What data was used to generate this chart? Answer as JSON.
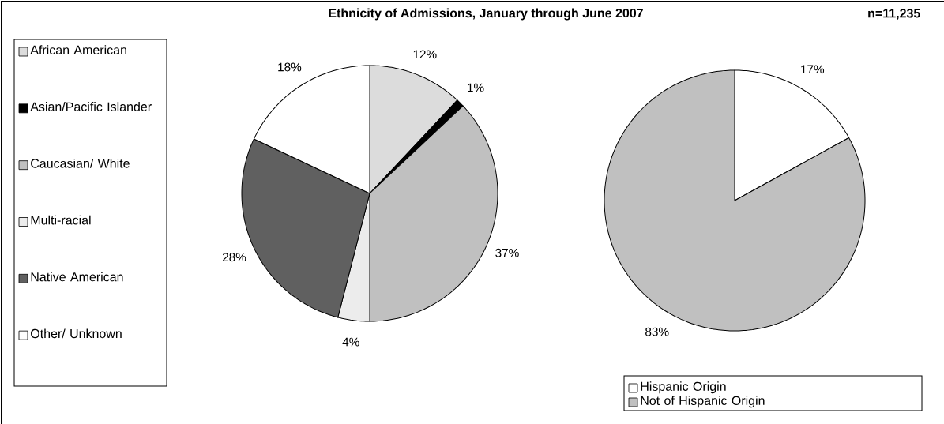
{
  "chart_data": [
    {
      "type": "pie",
      "title": "Ethnicity of Admissions, January through June 2007",
      "annotations": [
        "n=11,235"
      ],
      "categories": [
        "African American",
        "Asian/Pacific Islander",
        "Caucasian/ White",
        "Multi-racial",
        "Native American",
        "Other/ Unknown"
      ],
      "values": [
        12,
        1,
        37,
        4,
        28,
        18
      ],
      "value_labels": [
        "12%",
        "1%",
        "37%",
        "4%",
        "28%",
        "18%"
      ],
      "colors": [
        "#dcdcdc",
        "#000000",
        "#c0c0c0",
        "#ececec",
        "#606060",
        "#ffffff"
      ],
      "legend": "left"
    },
    {
      "type": "pie",
      "categories": [
        "Hispanic Origin",
        "Not of Hispanic Origin"
      ],
      "values": [
        17,
        83
      ],
      "value_labels": [
        "17%",
        "83%"
      ],
      "colors": [
        "#ffffff",
        "#c0c0c0"
      ],
      "legend": "bottom"
    }
  ]
}
